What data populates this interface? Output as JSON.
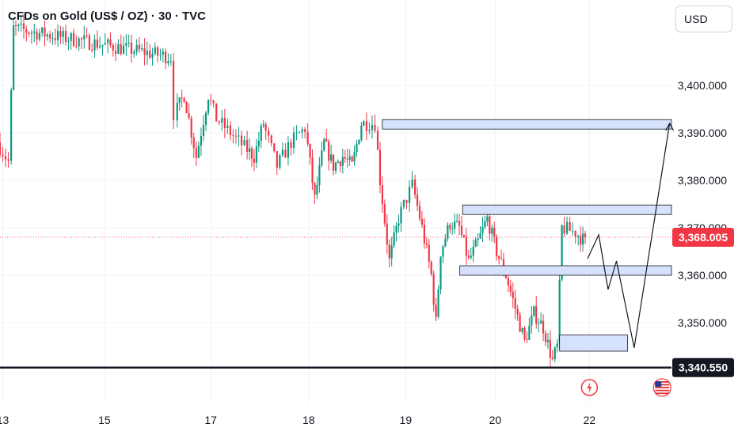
{
  "header": {
    "title": "CFDs on Gold (US$ / OZ) · 30 · TVC",
    "currency": "USD"
  },
  "colors": {
    "up": "#089981",
    "down": "#f23645",
    "zone_fill": "#d6e2fb",
    "zone_stroke": "#131722",
    "last_price_bg": "#f23645",
    "level_bg": "#131722",
    "grid": "#f0f3fa",
    "axis_text": "#131722"
  },
  "chart_data": {
    "type": "candlestick",
    "ylim": [
      3338,
      3408
    ],
    "y_ticks": [
      {
        "value": 3400,
        "label": "3,400.000"
      },
      {
        "value": 3390,
        "label": "3,390.000"
      },
      {
        "value": 3380,
        "label": "3,380.000"
      },
      {
        "value": 3370,
        "label": "3,370.000"
      },
      {
        "value": 3360,
        "label": "3,360.000"
      },
      {
        "value": 3350,
        "label": "3,350.000"
      }
    ],
    "x_ticks": [
      {
        "label": "13",
        "t": 0.3
      },
      {
        "label": "15",
        "t": 11.2
      },
      {
        "label": "17",
        "t": 22.6
      },
      {
        "label": "18",
        "t": 33.1
      },
      {
        "label": "19",
        "t": 43.5
      },
      {
        "label": "20",
        "t": 53.1
      },
      {
        "label": "22",
        "t": 63.2
      }
    ],
    "last_price": {
      "value": 3368.005,
      "label": "3,368.005"
    },
    "support_level": {
      "value": 3340.55,
      "label": "3,340.550"
    },
    "candle_anchors": [
      [
        0.0,
        3388
      ],
      [
        1.2,
        3384
      ],
      [
        1.7,
        3412
      ],
      [
        18.6,
        3406
      ],
      [
        19.0,
        3394
      ],
      [
        20.0,
        3398
      ],
      [
        21.3,
        3385
      ],
      [
        22.6,
        3398
      ],
      [
        23.5,
        3393
      ],
      [
        25.0,
        3390
      ],
      [
        26.5,
        3387
      ],
      [
        27.5,
        3385
      ],
      [
        28.5,
        3392
      ],
      [
        30.0,
        3383
      ],
      [
        31.5,
        3388
      ],
      [
        33.0,
        3391
      ],
      [
        34.0,
        3376
      ],
      [
        35.0,
        3388
      ],
      [
        36.0,
        3383
      ],
      [
        37.0,
        3385
      ],
      [
        38.0,
        3383
      ],
      [
        39.0,
        3392
      ],
      [
        40.5,
        3392
      ],
      [
        41.0,
        3380
      ],
      [
        42.0,
        3363
      ],
      [
        43.0,
        3372
      ],
      [
        44.5,
        3379
      ],
      [
        45.5,
        3370
      ],
      [
        46.5,
        3360
      ],
      [
        47.0,
        3350
      ],
      [
        47.5,
        3365
      ],
      [
        48.5,
        3371
      ],
      [
        49.5,
        3370
      ],
      [
        50.5,
        3363
      ],
      [
        51.5,
        3367
      ],
      [
        52.5,
        3372
      ],
      [
        53.5,
        3365
      ],
      [
        54.5,
        3360
      ],
      [
        55.5,
        3353
      ],
      [
        56.5,
        3346
      ],
      [
        57.5,
        3352
      ],
      [
        58.5,
        3349
      ],
      [
        59.5,
        3342
      ],
      [
        60.0,
        3345
      ],
      [
        60.5,
        3370
      ],
      [
        62.0,
        3369
      ],
      [
        63.0,
        3367
      ]
    ],
    "annotations": {
      "zones": [
        {
          "t1": 41.0,
          "t2": 72.0,
          "low": 3390.8,
          "high": 3392.8
        },
        {
          "t1": 49.6,
          "t2": 72.0,
          "low": 3372.8,
          "high": 3374.8
        },
        {
          "t1": 49.3,
          "t2": 72.0,
          "low": 3360.0,
          "high": 3362.0
        },
        {
          "t1": 60.0,
          "t2": 67.3,
          "low": 3344.0,
          "high": 3347.4
        }
      ],
      "projection": [
        [
          63.0,
          3363.5
        ],
        [
          64.2,
          3368.5
        ],
        [
          65.2,
          3357.0
        ],
        [
          66.1,
          3363.0
        ],
        [
          68.0,
          3344.7
        ],
        [
          71.8,
          3392.0
        ]
      ]
    },
    "event_markers": [
      {
        "t": 63.2,
        "kind": "lightning-icon"
      },
      {
        "t": 71.0,
        "kind": "us-flag-icon"
      }
    ]
  }
}
